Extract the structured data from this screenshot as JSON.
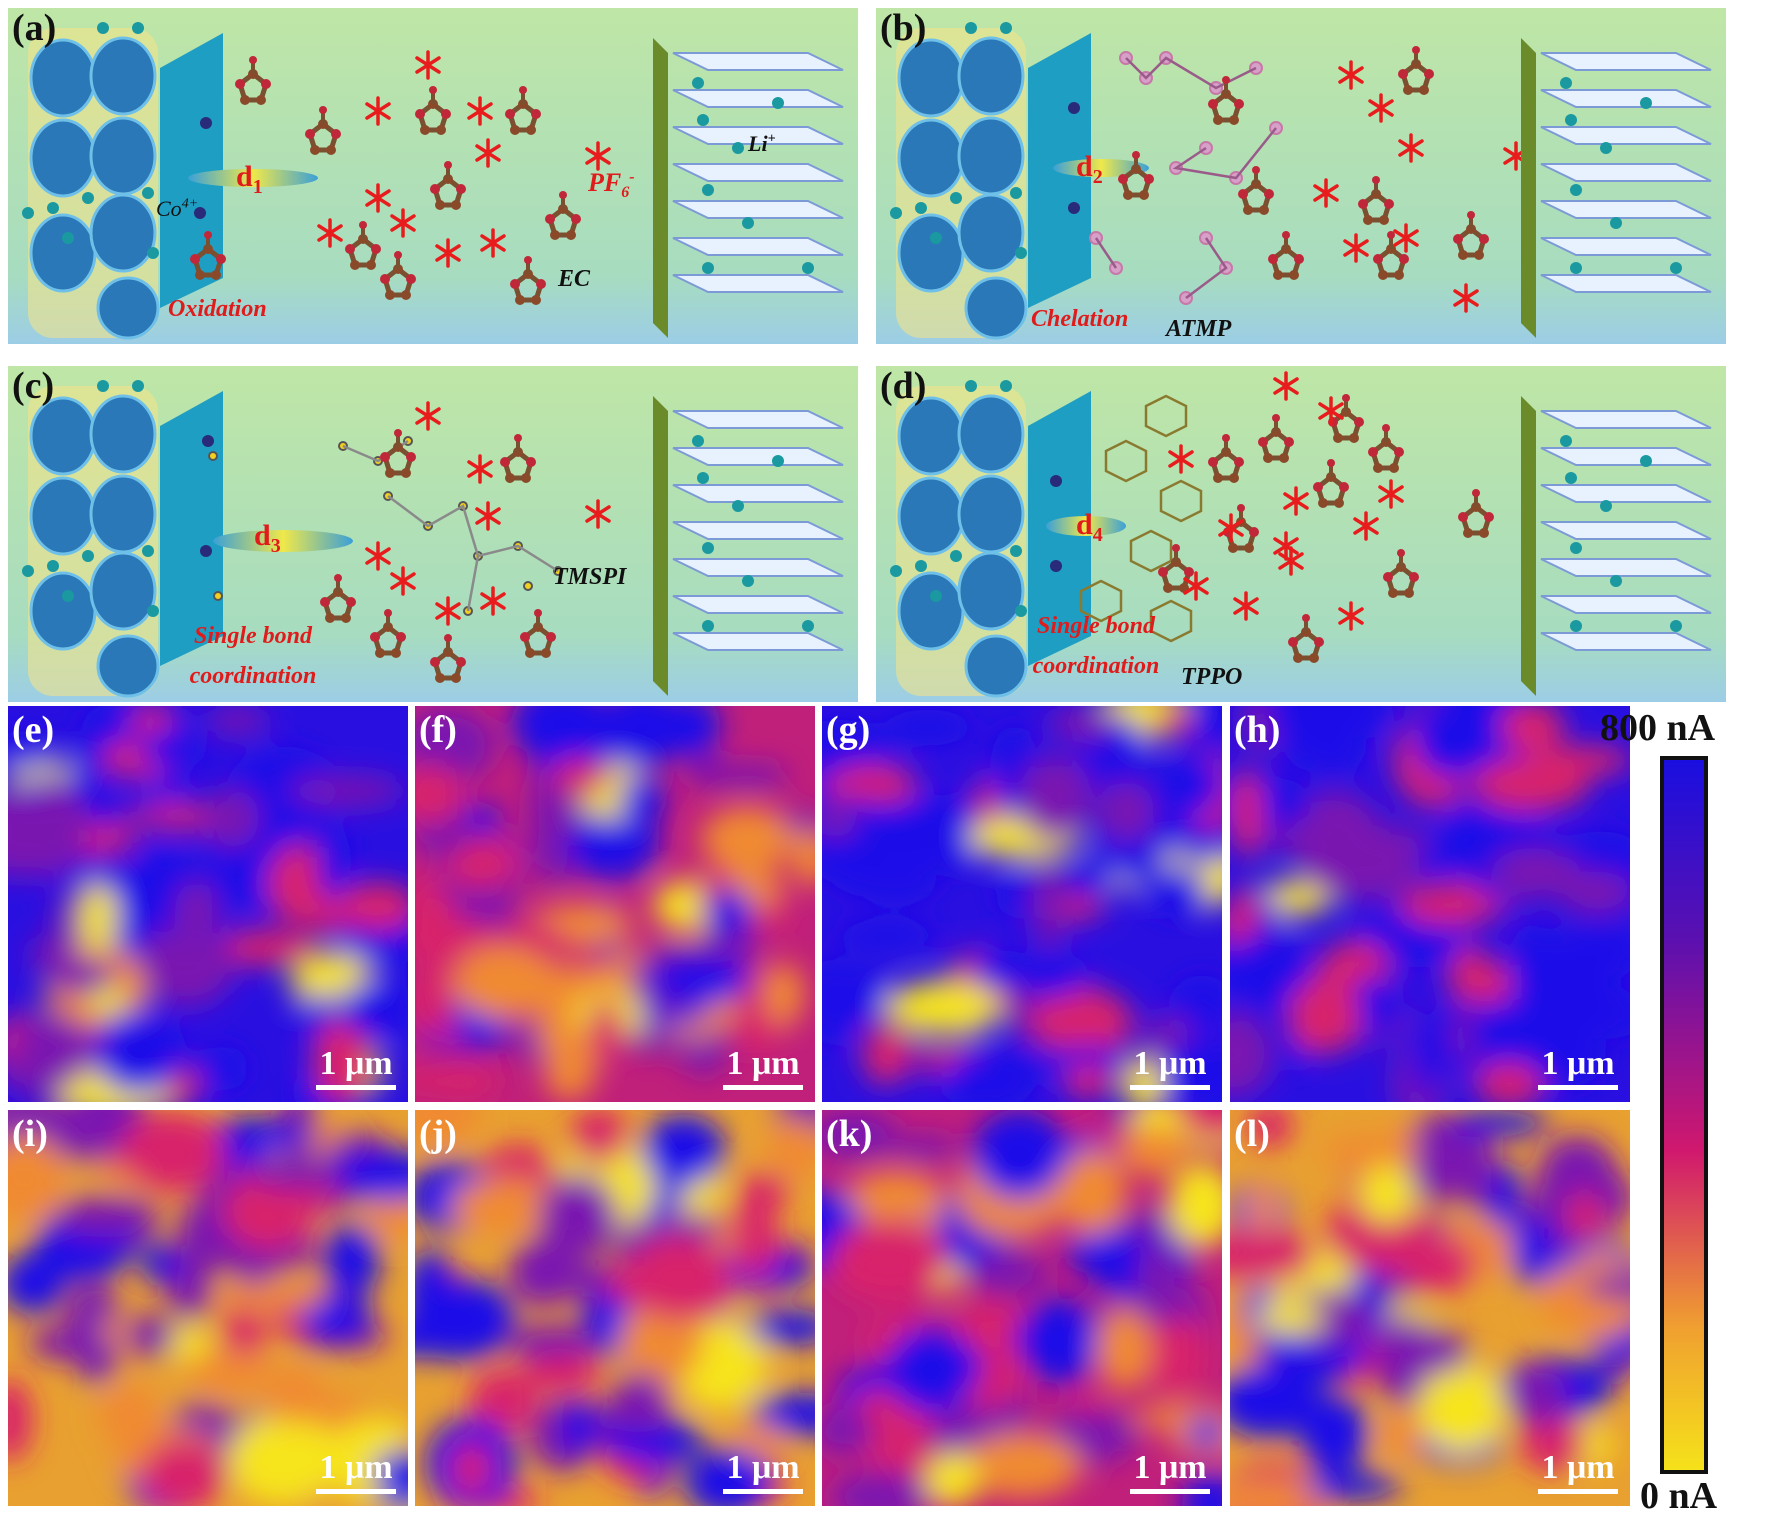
{
  "schematics": [
    {
      "id": "a",
      "label": "(a)",
      "distance": "d",
      "distance_sub": "1",
      "annotations": [
        {
          "key": "ion",
          "text": "Co",
          "sup": "4+"
        },
        {
          "key": "anion",
          "text": "PF",
          "sub": "6",
          "sup": "-"
        },
        {
          "key": "li",
          "text": "Li",
          "sup": "+"
        },
        {
          "key": "solvent",
          "text": "EC"
        },
        {
          "key": "mechanism",
          "text": "Oxidation"
        }
      ]
    },
    {
      "id": "b",
      "label": "(b)",
      "distance": "d",
      "distance_sub": "2",
      "annotations": [
        {
          "key": "mechanism",
          "text": "Chelation"
        },
        {
          "key": "additive",
          "text": "ATMP"
        }
      ]
    },
    {
      "id": "c",
      "label": "(c)",
      "distance": "d",
      "distance_sub": "3",
      "annotations": [
        {
          "key": "mechanism",
          "text": "Single bond coordination"
        },
        {
          "key": "additive",
          "text": "TMSPI"
        }
      ]
    },
    {
      "id": "d",
      "label": "(d)",
      "distance": "d",
      "distance_sub": "4",
      "annotations": [
        {
          "key": "mechanism",
          "text": "Single bond coordination"
        },
        {
          "key": "additive",
          "text": "TPPO"
        }
      ]
    }
  ],
  "maps": [
    {
      "id": "e",
      "label": "(e)",
      "scale": "1 μm"
    },
    {
      "id": "f",
      "label": "(f)",
      "scale": "1 μm"
    },
    {
      "id": "g",
      "label": "(g)",
      "scale": "1 μm"
    },
    {
      "id": "h",
      "label": "(h)",
      "scale": "1 μm"
    },
    {
      "id": "i",
      "label": "(i)",
      "scale": "1 μm"
    },
    {
      "id": "j",
      "label": "(j)",
      "scale": "1 μm"
    },
    {
      "id": "k",
      "label": "(k)",
      "scale": "1 μm"
    },
    {
      "id": "l",
      "label": "(l)",
      "scale": "1 μm"
    }
  ],
  "colorbar": {
    "max_label": "800 nA",
    "min_label": "0 nA",
    "max_color": "#1a0fe0",
    "mid_color": "#d0186e",
    "min_color": "#f5e21a"
  },
  "colors": {
    "panel_top": "#b8e3a8",
    "panel_bottom": "#9fd4e8",
    "asterisk": "#e81c1c",
    "accent_red": "#e01b1b"
  }
}
